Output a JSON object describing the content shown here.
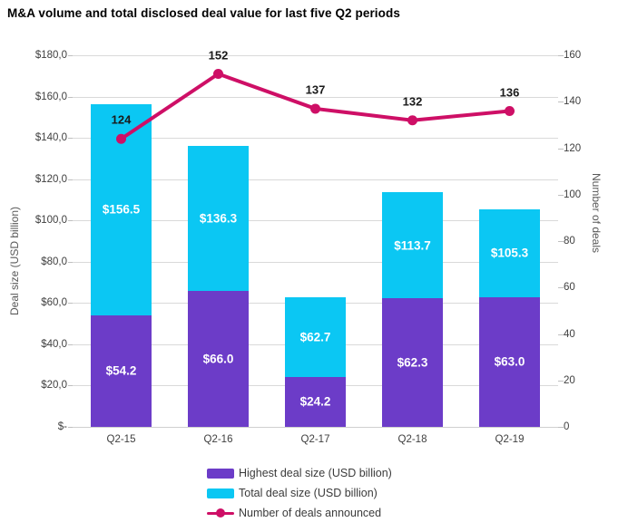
{
  "title": "M&A volume and total disclosed deal value for last five Q2 periods",
  "chart_data": {
    "type": "bar",
    "subtype": "combo-stacked-bar-with-line",
    "categories": [
      "Q2-15",
      "Q2-16",
      "Q2-17",
      "Q2-18",
      "Q2-19"
    ],
    "series": [
      {
        "name": "Highest deal size (USD billion)",
        "type": "bar",
        "axis": "left",
        "color": "#6C3CC8",
        "values": [
          54.2,
          66.0,
          24.2,
          62.3,
          63.0
        ],
        "labels": [
          "$54.2",
          "$66.0",
          "$24.2",
          "$62.3",
          "$63.0"
        ]
      },
      {
        "name": "Total deal size (USD billion)",
        "type": "bar",
        "axis": "left",
        "color": "#0BC7F3",
        "values": [
          156.5,
          136.3,
          62.7,
          113.7,
          105.3
        ],
        "labels": [
          "$156.5",
          "$136.3",
          "$62.7",
          "$113.7",
          "$105.3"
        ]
      },
      {
        "name": "Number of deals announced",
        "type": "line",
        "axis": "right",
        "color": "#CE0F66",
        "values": [
          124,
          152,
          137,
          132,
          136
        ],
        "labels": [
          "124",
          "152",
          "137",
          "132",
          "136"
        ]
      }
    ],
    "left_axis": {
      "title": "Deal size (USD billion)",
      "min": 0,
      "max": 180,
      "tick_step": 20,
      "ticks": [
        "$180,0",
        "$160,0",
        "$140,0",
        "$120,0",
        "$100,0",
        "$80,0",
        "$60,0",
        "$40,0",
        "$20,0",
        "$-"
      ]
    },
    "right_axis": {
      "title": "Number of deals",
      "min": 0,
      "max": 160,
      "tick_step": 20,
      "ticks": [
        "160",
        "140",
        "120",
        "100",
        "80",
        "60",
        "40",
        "20",
        "0"
      ]
    },
    "grid": true,
    "legend_position": "bottom",
    "colors": {
      "grid": "#D9D9D9",
      "axis_text": "#404040",
      "bar_label_text": "#FFFFFF",
      "line_label_text": "#1A1A1A"
    }
  }
}
